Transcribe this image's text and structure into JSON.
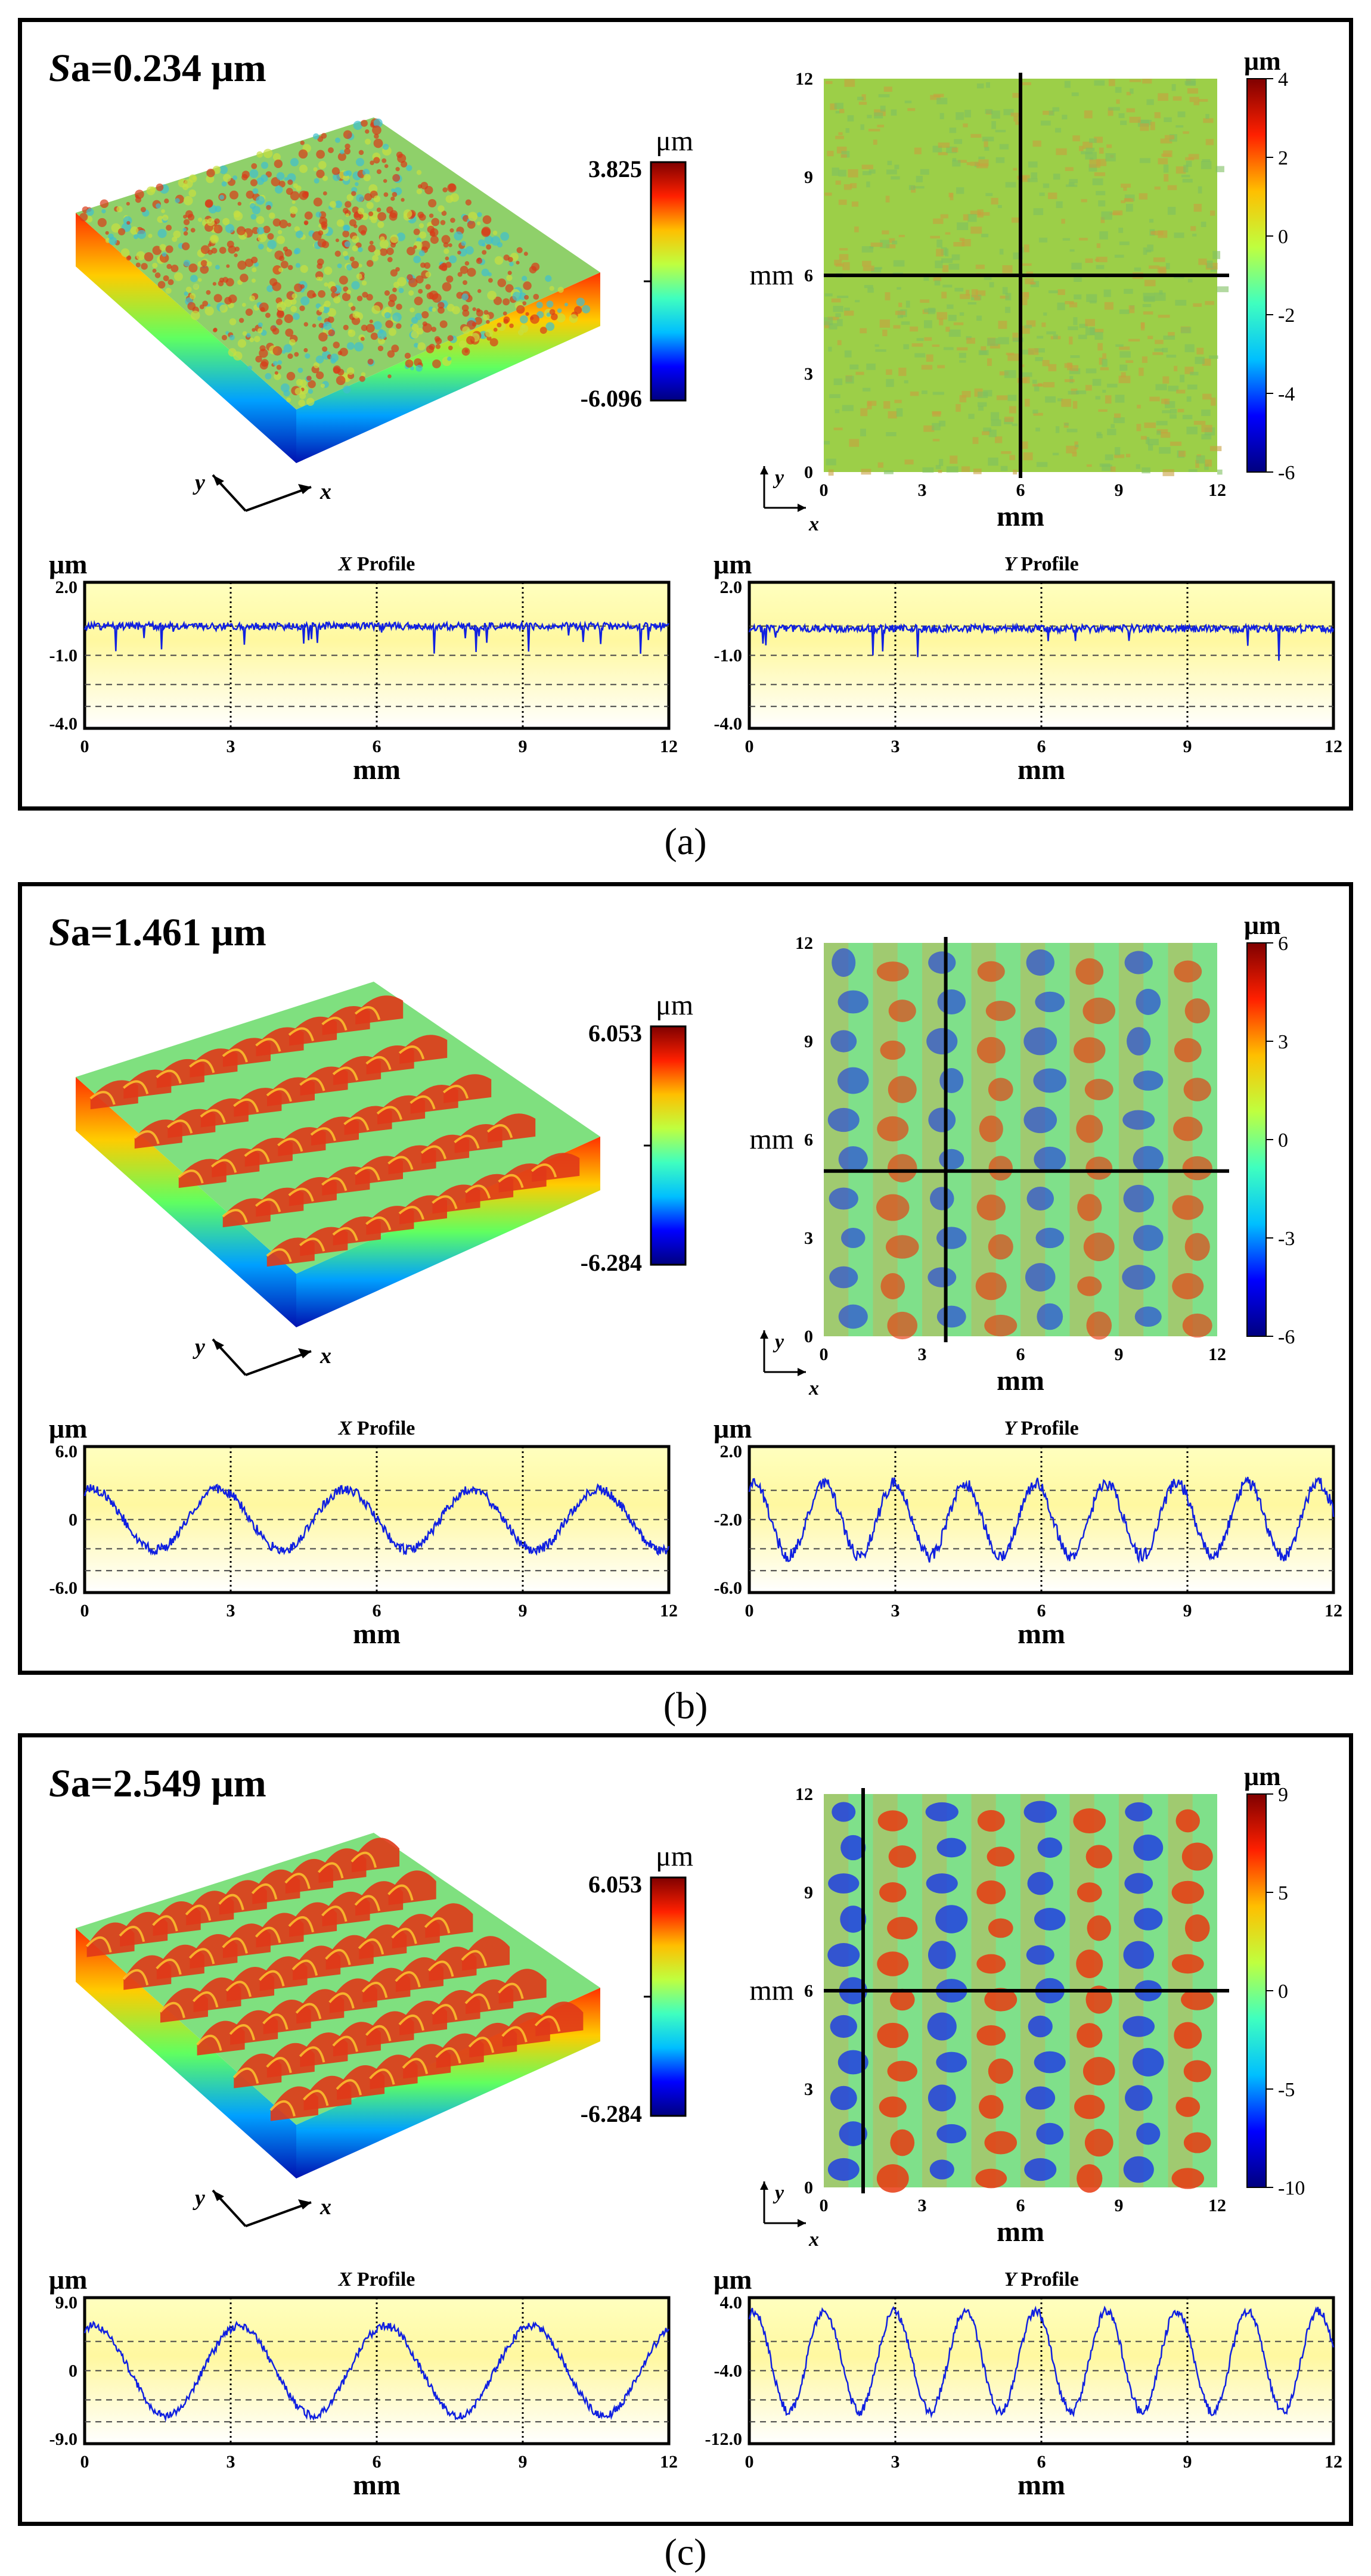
{
  "panels": [
    {
      "label": "(a)",
      "sa": {
        "symbol": "S",
        "sub": "a",
        "value": "=0.234 μm"
      },
      "colorbar3d": {
        "unit": "μm",
        "max": "3.825",
        "min": "-6.096"
      },
      "map": {
        "ylabel": "mm",
        "xlabel": "mm",
        "xticks": [
          "0",
          "3",
          "6",
          "9",
          "12"
        ],
        "yticks": [
          "0",
          "3",
          "6",
          "9",
          "12"
        ],
        "cb_unit": "μm",
        "cb_ticks": [
          "4",
          "2",
          "0",
          "-2",
          "-4",
          "-6"
        ],
        "style": "flat"
      },
      "xprofile": {
        "title_var": "X",
        "title": "Profile",
        "unit": "μm",
        "yticks": [
          "2.0",
          "-1.0",
          "-4.0"
        ],
        "xticks": [
          "0",
          "3",
          "6",
          "9",
          "12"
        ],
        "xlabel": "mm",
        "ymin": -4,
        "ymax": 2,
        "kind": "flat",
        "level": 0.2,
        "noise": 0.15,
        "amp": 0,
        "period": 3,
        "spikes": 0.6
      },
      "yprofile": {
        "title_var": "Y",
        "title": "Profile",
        "unit": "μm",
        "yticks": [
          "2.0",
          "-1.0",
          "-4.0"
        ],
        "xticks": [
          "0",
          "3",
          "6",
          "9",
          "12"
        ],
        "xlabel": "mm",
        "ymin": -4,
        "ymax": 2,
        "kind": "flat",
        "level": 0.1,
        "noise": 0.15,
        "amp": 0,
        "period": 3,
        "spikes": 0.6
      },
      "axes": {
        "x": "x",
        "y": "y"
      }
    },
    {
      "label": "(b)",
      "sa": {
        "symbol": "S",
        "sub": "a",
        "value": "=1.461 μm"
      },
      "colorbar3d": {
        "unit": "μm",
        "max": "6.053",
        "min": "-6.284"
      },
      "map": {
        "ylabel": "mm",
        "xlabel": "mm",
        "xticks": [
          "0",
          "3",
          "6",
          "9",
          "12"
        ],
        "yticks": [
          "0",
          "3",
          "6",
          "9",
          "12"
        ],
        "cb_unit": "μm",
        "cb_ticks": [
          "6",
          "3",
          "0",
          "-3",
          "-6"
        ],
        "style": "wave1"
      },
      "xprofile": {
        "title_var": "X",
        "title": "Profile",
        "unit": "μm",
        "yticks": [
          "6.0",
          "0",
          "-6.0"
        ],
        "xticks": [
          "0",
          "3",
          "6",
          "9",
          "12"
        ],
        "xlabel": "mm",
        "ymin": -6,
        "ymax": 6,
        "kind": "wave",
        "level": 0,
        "noise": 0.4,
        "amp": 2.5,
        "period": 2.6,
        "spikes": 0
      },
      "yprofile": {
        "title_var": "Y",
        "title": "Profile",
        "unit": "μm",
        "yticks": [
          "2.0",
          "-2.0",
          "-6.0"
        ],
        "xticks": [
          "0",
          "3",
          "6",
          "9",
          "12"
        ],
        "xlabel": "mm",
        "ymin": -6,
        "ymax": 2,
        "kind": "wave",
        "level": -2,
        "noise": 0.35,
        "amp": 2.0,
        "period": 1.45,
        "spikes": 0
      },
      "axes": {
        "x": "x",
        "y": "y"
      }
    },
    {
      "label": "(c)",
      "sa": {
        "symbol": "S",
        "sub": "a",
        "value": "=2.549 μm"
      },
      "colorbar3d": {
        "unit": "μm",
        "max": "6.053",
        "min": "-6.284"
      },
      "map": {
        "ylabel": "mm",
        "xlabel": "mm",
        "xticks": [
          "0",
          "3",
          "6",
          "9",
          "12"
        ],
        "yticks": [
          "0",
          "3",
          "6",
          "9",
          "12"
        ],
        "cb_unit": "μm",
        "cb_ticks": [
          "9",
          "5",
          "0",
          "-5",
          "-10"
        ],
        "style": "wave2"
      },
      "xprofile": {
        "title_var": "X",
        "title": "Profile",
        "unit": "μm",
        "yticks": [
          "9.0",
          "0",
          "-9.0"
        ],
        "xticks": [
          "0",
          "3",
          "6",
          "9",
          "12"
        ],
        "xlabel": "mm",
        "ymin": -9,
        "ymax": 9,
        "kind": "wave",
        "level": 0,
        "noise": 0.5,
        "amp": 5.5,
        "period": 3,
        "spikes": 0
      },
      "yprofile": {
        "title_var": "Y",
        "title": "Profile",
        "unit": "μm",
        "yticks": [
          "4.0",
          "-4.0",
          "-12.0"
        ],
        "xticks": [
          "0",
          "3",
          "6",
          "9",
          "12"
        ],
        "xlabel": "mm",
        "ymin": -12,
        "ymax": 4,
        "kind": "wave",
        "level": -3,
        "noise": 0.5,
        "amp": 5.5,
        "period": 1.45,
        "spikes": 0
      },
      "axes": {
        "x": "x",
        "y": "y"
      }
    }
  ]
}
